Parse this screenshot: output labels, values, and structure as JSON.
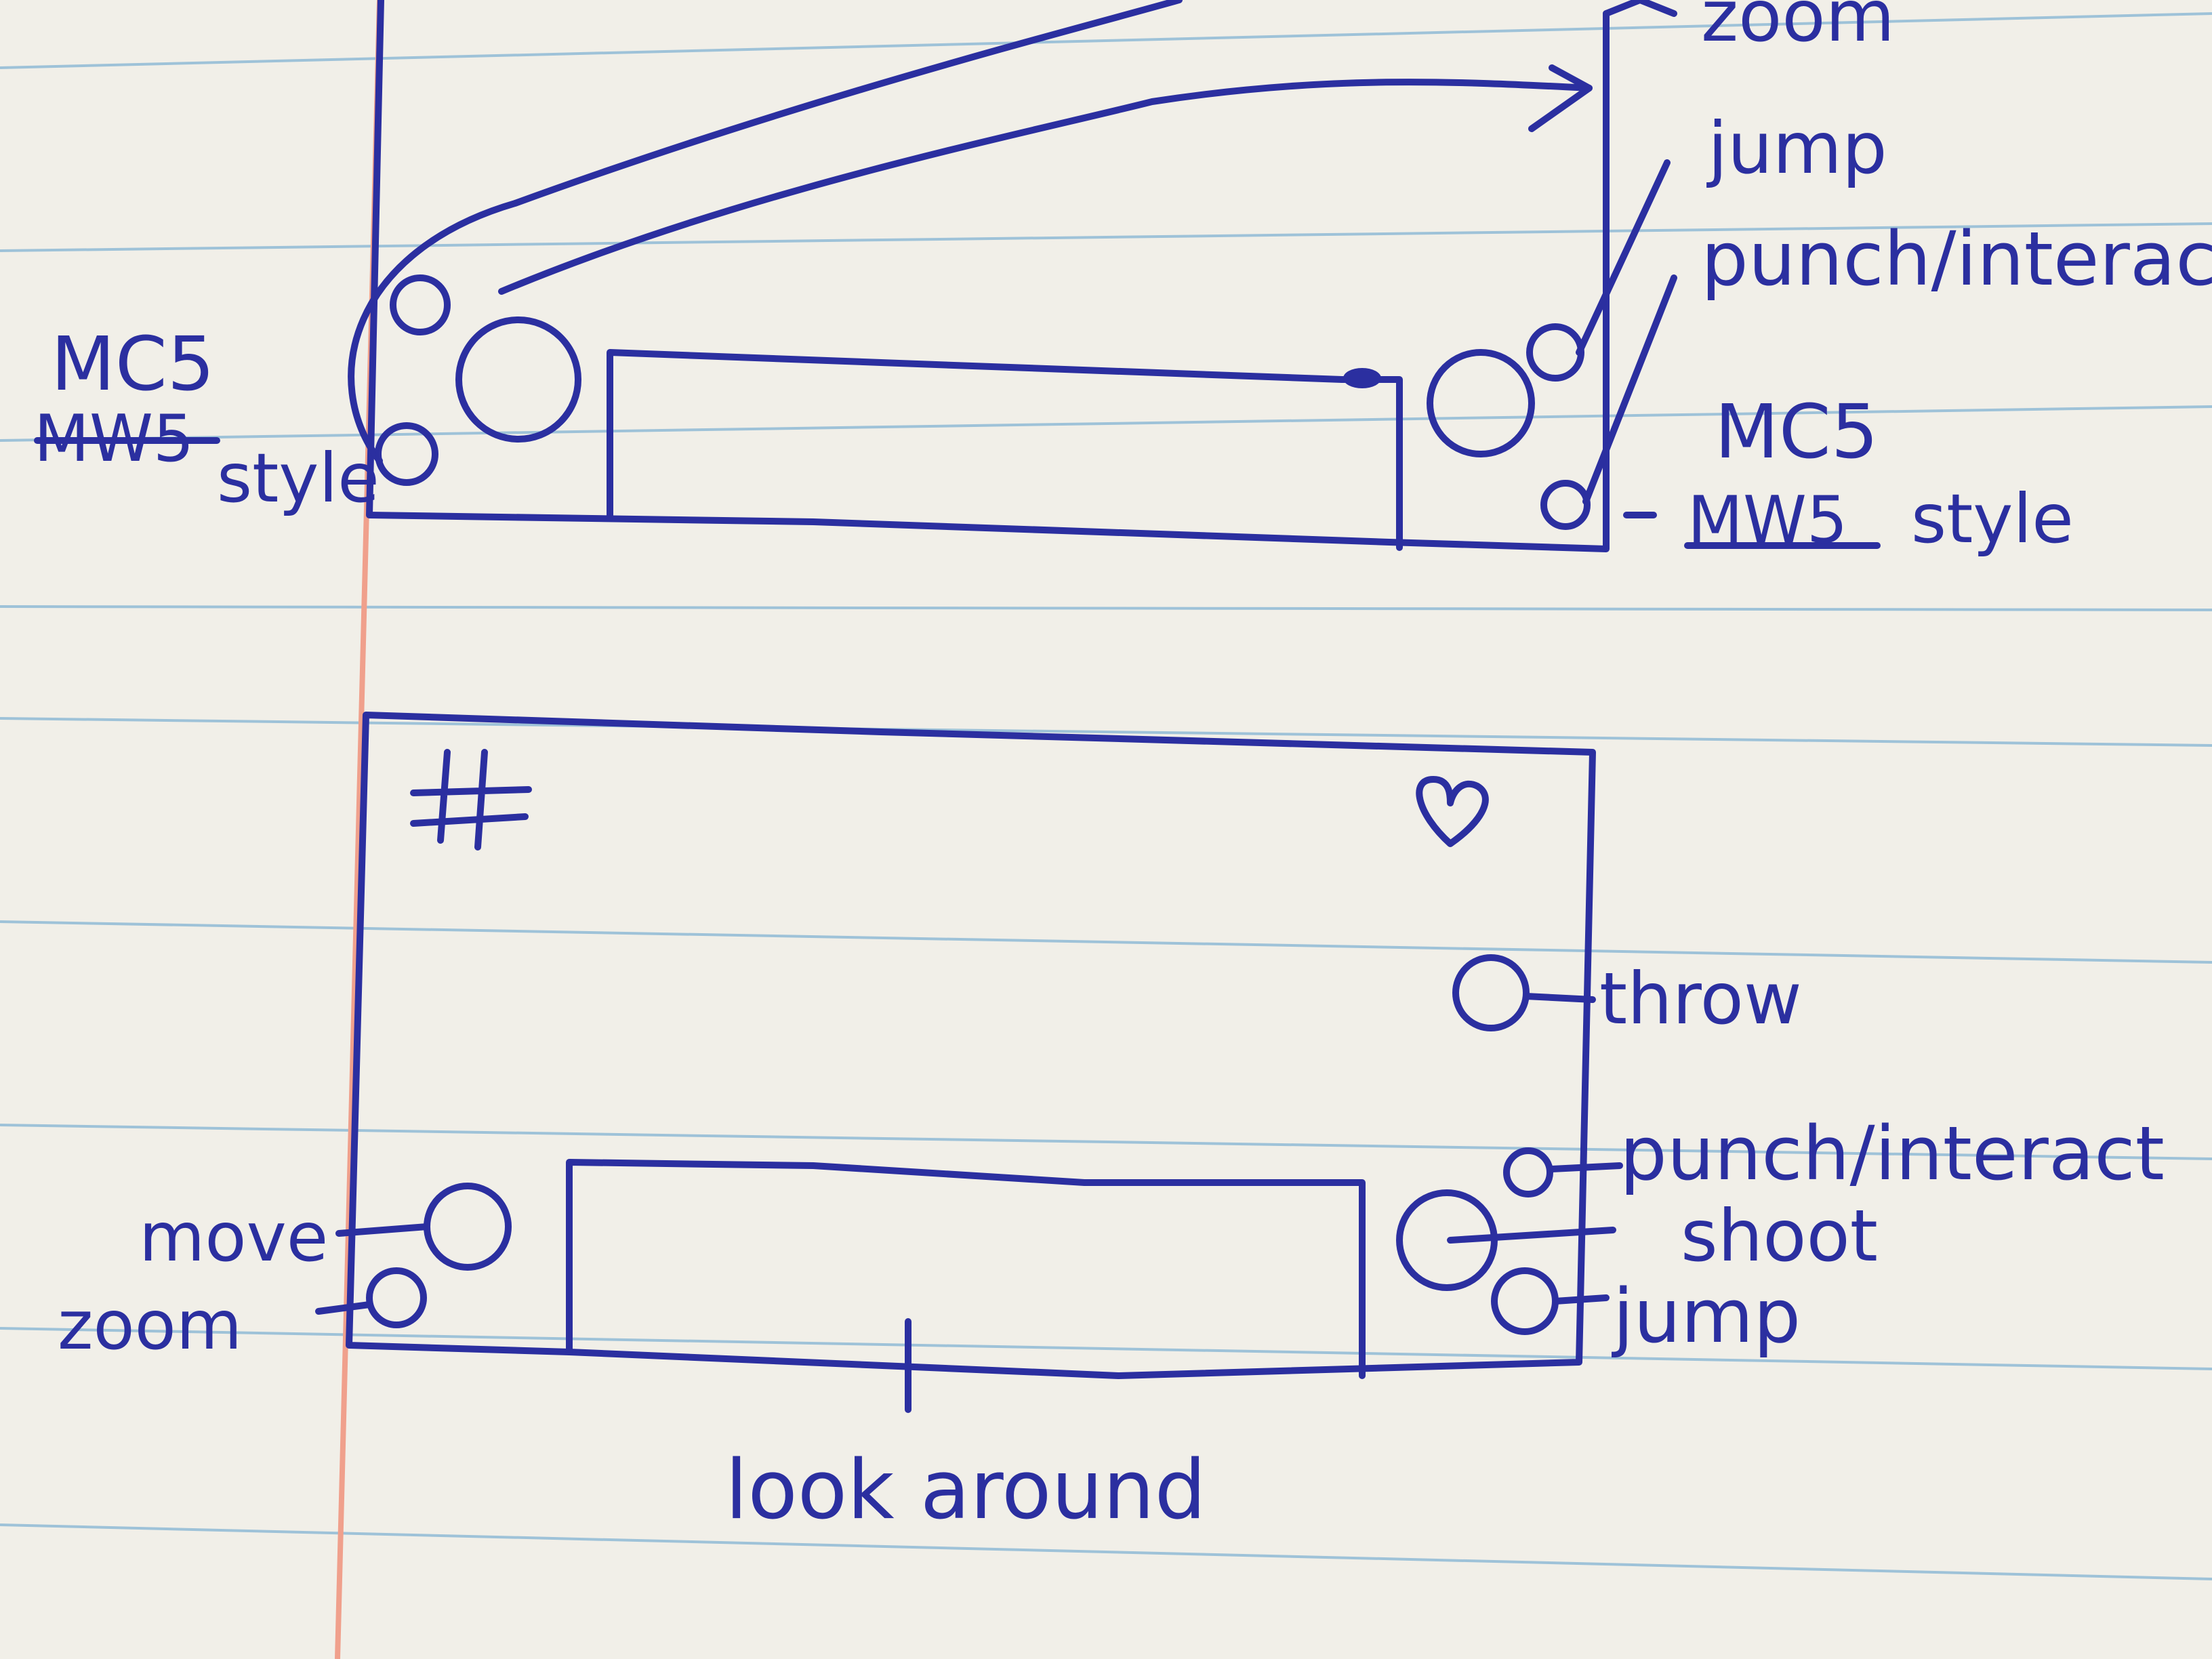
{
  "ink_color": "#2b2fa0",
  "paper_color": "#f1efe8",
  "rule_color": "#9ec2d8",
  "margin_color": "#f0a08c",
  "sketch_top": {
    "right_labels": {
      "zoom": "zoom",
      "jump": "jump",
      "punch_interact": "punch/interac"
    },
    "left_style_note": {
      "prefix": "MC5",
      "crossed": "MW5",
      "suffix": "style"
    },
    "right_style_note": {
      "prefix": "MC5",
      "crossed": "MW5",
      "suffix": "style"
    }
  },
  "sketch_bottom": {
    "hash_symbol": "#",
    "heart_icon": "heart-icon",
    "labels": {
      "throw": "throw",
      "punch_interact": "punch/interact",
      "shoot": "shoot",
      "jump": "jump",
      "move": "move",
      "zoom": "zoom",
      "look_around": "look around"
    }
  }
}
